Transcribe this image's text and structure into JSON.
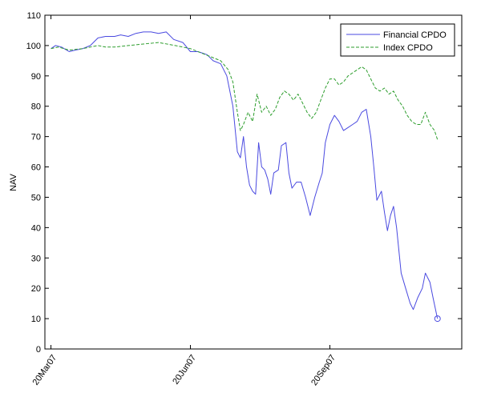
{
  "chart_data": {
    "type": "line",
    "title": "",
    "xlabel": "",
    "ylabel": "NAV",
    "ylim": [
      0,
      110
    ],
    "yticks": [
      0,
      10,
      20,
      30,
      40,
      50,
      60,
      70,
      80,
      90,
      100,
      110
    ],
    "xlim": [
      "2007-03-16",
      "2007-12-16"
    ],
    "xticks": [
      {
        "date": "2007-03-20",
        "label": "20Mar07"
      },
      {
        "date": "2007-06-20",
        "label": "20Jun07"
      },
      {
        "date": "2007-09-20",
        "label": "20Sep07"
      }
    ],
    "grid": false,
    "legend_position": "top-right",
    "series": [
      {
        "name": "Financial CPDO",
        "color": "#4a4ae0",
        "style": "solid",
        "end_marker": "circle",
        "points": [
          [
            "2007-03-20",
            99
          ],
          [
            "2007-03-23",
            100
          ],
          [
            "2007-03-27",
            99.5
          ],
          [
            "2007-04-01",
            98
          ],
          [
            "2007-04-05",
            98.5
          ],
          [
            "2007-04-10",
            99
          ],
          [
            "2007-04-15",
            100
          ],
          [
            "2007-04-20",
            102.5
          ],
          [
            "2007-04-25",
            103
          ],
          [
            "2007-05-01",
            103
          ],
          [
            "2007-05-05",
            103.5
          ],
          [
            "2007-05-10",
            103
          ],
          [
            "2007-05-15",
            104
          ],
          [
            "2007-05-20",
            104.5
          ],
          [
            "2007-05-25",
            104.5
          ],
          [
            "2007-05-30",
            104
          ],
          [
            "2007-06-04",
            104.5
          ],
          [
            "2007-06-09",
            102
          ],
          [
            "2007-06-15",
            101
          ],
          [
            "2007-06-20",
            98
          ],
          [
            "2007-06-25",
            98
          ],
          [
            "2007-07-01",
            97
          ],
          [
            "2007-07-05",
            95
          ],
          [
            "2007-07-10",
            94
          ],
          [
            "2007-07-14",
            90
          ],
          [
            "2007-07-18",
            80
          ],
          [
            "2007-07-21",
            65
          ],
          [
            "2007-07-23",
            63
          ],
          [
            "2007-07-25",
            70
          ],
          [
            "2007-07-27",
            60
          ],
          [
            "2007-07-29",
            54
          ],
          [
            "2007-07-31",
            52
          ],
          [
            "2007-08-02",
            51
          ],
          [
            "2007-08-04",
            68
          ],
          [
            "2007-08-06",
            60
          ],
          [
            "2007-08-08",
            59
          ],
          [
            "2007-08-10",
            56
          ],
          [
            "2007-08-12",
            51
          ],
          [
            "2007-08-14",
            58
          ],
          [
            "2007-08-17",
            59
          ],
          [
            "2007-08-19",
            67
          ],
          [
            "2007-08-22",
            68
          ],
          [
            "2007-08-24",
            58
          ],
          [
            "2007-08-26",
            53
          ],
          [
            "2007-08-29",
            55
          ],
          [
            "2007-09-01",
            55
          ],
          [
            "2007-09-04",
            50
          ],
          [
            "2007-09-07",
            44
          ],
          [
            "2007-09-10",
            50
          ],
          [
            "2007-09-13",
            55
          ],
          [
            "2007-09-15",
            58
          ],
          [
            "2007-09-17",
            68
          ],
          [
            "2007-09-20",
            74
          ],
          [
            "2007-09-23",
            77
          ],
          [
            "2007-09-26",
            75
          ],
          [
            "2007-09-29",
            72
          ],
          [
            "2007-10-02",
            73
          ],
          [
            "2007-10-05",
            74
          ],
          [
            "2007-10-08",
            75
          ],
          [
            "2007-10-11",
            78
          ],
          [
            "2007-10-14",
            79
          ],
          [
            "2007-10-17",
            70
          ],
          [
            "2007-10-19",
            60
          ],
          [
            "2007-10-21",
            49
          ],
          [
            "2007-10-24",
            52
          ],
          [
            "2007-10-26",
            45
          ],
          [
            "2007-10-28",
            39
          ],
          [
            "2007-10-30",
            44
          ],
          [
            "2007-11-01",
            47
          ],
          [
            "2007-11-03",
            40
          ],
          [
            "2007-11-06",
            25
          ],
          [
            "2007-11-09",
            20
          ],
          [
            "2007-11-12",
            15
          ],
          [
            "2007-11-14",
            13
          ],
          [
            "2007-11-17",
            17
          ],
          [
            "2007-11-20",
            20
          ],
          [
            "2007-11-22",
            25
          ],
          [
            "2007-11-25",
            22
          ],
          [
            "2007-11-27",
            17
          ],
          [
            "2007-11-30",
            10
          ]
        ]
      },
      {
        "name": "Index CPDO",
        "color": "#2e9e2e",
        "style": "dashed",
        "points": [
          [
            "2007-03-20",
            99
          ],
          [
            "2007-03-25",
            99.5
          ],
          [
            "2007-04-01",
            98.5
          ],
          [
            "2007-04-10",
            99
          ],
          [
            "2007-04-20",
            100
          ],
          [
            "2007-04-25",
            99.5
          ],
          [
            "2007-05-01",
            99.5
          ],
          [
            "2007-05-10",
            100
          ],
          [
            "2007-05-20",
            100.5
          ],
          [
            "2007-05-30",
            101
          ],
          [
            "2007-06-10",
            100
          ],
          [
            "2007-06-20",
            99
          ],
          [
            "2007-06-30",
            97
          ],
          [
            "2007-07-05",
            96
          ],
          [
            "2007-07-10",
            95
          ],
          [
            "2007-07-15",
            92
          ],
          [
            "2007-07-18",
            88
          ],
          [
            "2007-07-21",
            78
          ],
          [
            "2007-07-23",
            72
          ],
          [
            "2007-07-25",
            74
          ],
          [
            "2007-07-28",
            78
          ],
          [
            "2007-07-31",
            75
          ],
          [
            "2007-08-03",
            84
          ],
          [
            "2007-08-06",
            78
          ],
          [
            "2007-08-09",
            80
          ],
          [
            "2007-08-12",
            77
          ],
          [
            "2007-08-15",
            79
          ],
          [
            "2007-08-18",
            83
          ],
          [
            "2007-08-21",
            85
          ],
          [
            "2007-08-24",
            84
          ],
          [
            "2007-08-27",
            82
          ],
          [
            "2007-08-30",
            84
          ],
          [
            "2007-09-02",
            81
          ],
          [
            "2007-09-05",
            78
          ],
          [
            "2007-09-08",
            76
          ],
          [
            "2007-09-11",
            78
          ],
          [
            "2007-09-14",
            82
          ],
          [
            "2007-09-17",
            86
          ],
          [
            "2007-09-20",
            89
          ],
          [
            "2007-09-23",
            89
          ],
          [
            "2007-09-26",
            87
          ],
          [
            "2007-09-29",
            88
          ],
          [
            "2007-10-02",
            90
          ],
          [
            "2007-10-05",
            91
          ],
          [
            "2007-10-08",
            92
          ],
          [
            "2007-10-11",
            93
          ],
          [
            "2007-10-14",
            92
          ],
          [
            "2007-10-17",
            89
          ],
          [
            "2007-10-20",
            86
          ],
          [
            "2007-10-23",
            85
          ],
          [
            "2007-10-26",
            86
          ],
          [
            "2007-10-29",
            84
          ],
          [
            "2007-11-01",
            85
          ],
          [
            "2007-11-04",
            82
          ],
          [
            "2007-11-07",
            80
          ],
          [
            "2007-11-10",
            77
          ],
          [
            "2007-11-13",
            75
          ],
          [
            "2007-11-16",
            74
          ],
          [
            "2007-11-19",
            74
          ],
          [
            "2007-11-22",
            78
          ],
          [
            "2007-11-25",
            74
          ],
          [
            "2007-11-28",
            72
          ],
          [
            "2007-11-30",
            69
          ]
        ]
      }
    ]
  }
}
